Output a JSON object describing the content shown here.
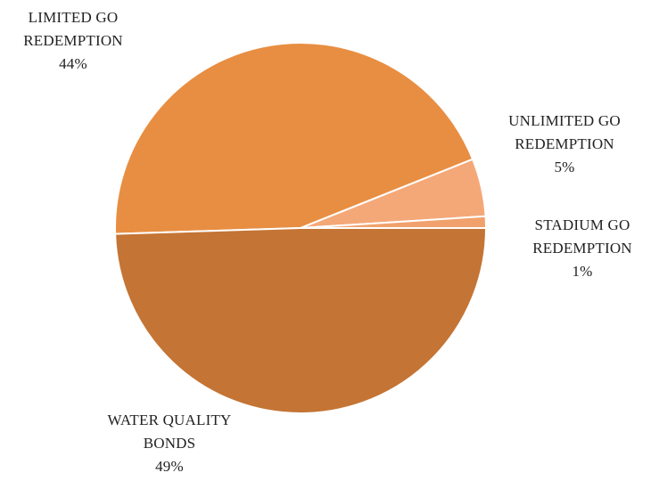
{
  "chart_data": {
    "type": "pie",
    "title": "",
    "slices": [
      {
        "label": "LIMITED GO REDEMPTION",
        "label_lines": [
          "LIMITED GO",
          "REDEMPTION"
        ],
        "value": 44,
        "value_label": "44%",
        "color": "#E88E42"
      },
      {
        "label": "UNLIMITED GO REDEMPTION",
        "label_lines": [
          "UNLIMITED GO",
          "REDEMPTION"
        ],
        "value": 5,
        "value_label": "5%",
        "color": "#F4A878"
      },
      {
        "label": "STADIUM GO REDEMPTION",
        "label_lines": [
          "STADIUM GO",
          "REDEMPTION"
        ],
        "value": 1,
        "value_label": "1%",
        "color": "#F1A16C"
      },
      {
        "label": "WATER QUALITY BONDS",
        "label_lines": [
          "WATER QUALITY",
          "BONDS"
        ],
        "value": 49,
        "value_label": "49%",
        "color": "#C47434"
      }
    ]
  }
}
